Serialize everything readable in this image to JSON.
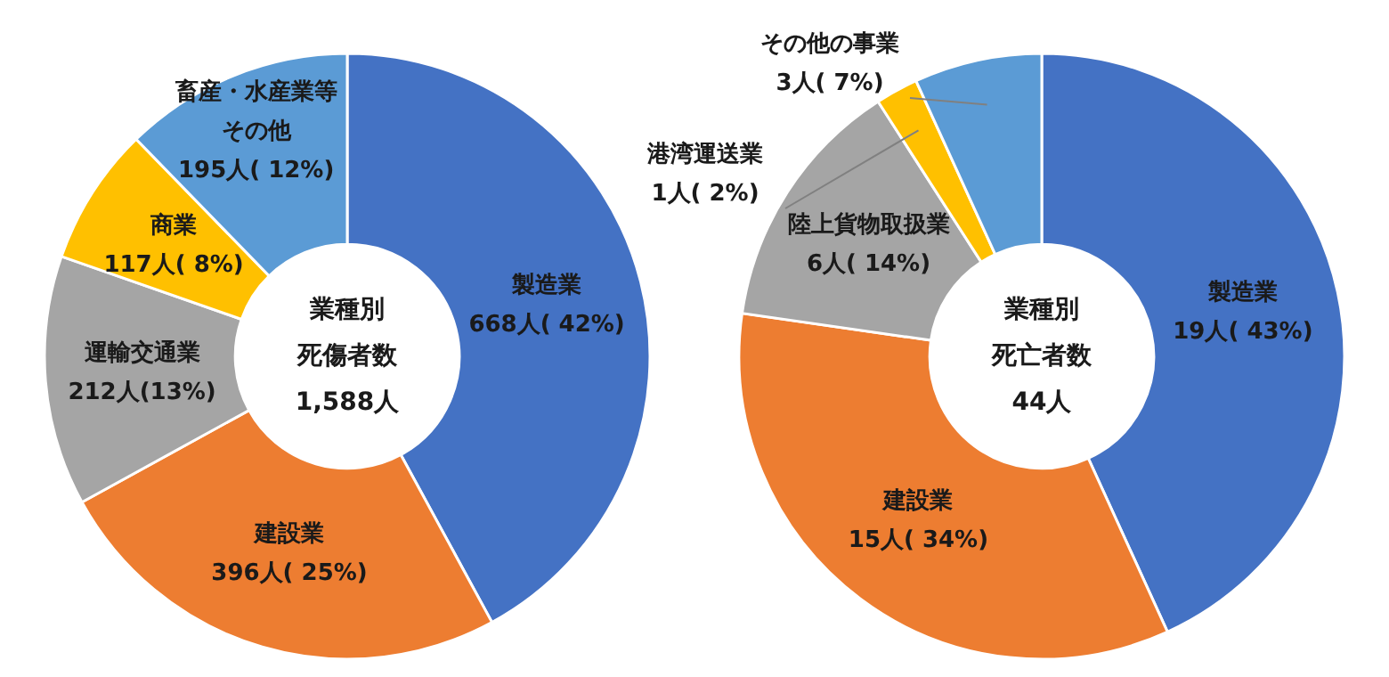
{
  "chart_data": [
    {
      "type": "donut",
      "categories": [
        "製造業",
        "建設業",
        "運輸交通業",
        "商業",
        "畜産・水産業等その他"
      ],
      "values": [
        668,
        396,
        212,
        117,
        195
      ],
      "colors": [
        "#4472c4",
        "#ed7d31",
        "#a5a5a5",
        "#ffc000",
        "#5b9bd5"
      ],
      "value_labels": [
        "668人( 42%)",
        "396人( 25%)",
        "212人(13%)",
        "117人( 8%)",
        "195人( 12%)"
      ],
      "annotations": [
        "業種別",
        "死傷者数",
        "1,588人"
      ]
    },
    {
      "type": "donut",
      "categories": [
        "製造業",
        "建設業",
        "陸上貨物取扱業",
        "港湾運送業",
        "その他の事業"
      ],
      "values": [
        19,
        15,
        6,
        1,
        3
      ],
      "colors": [
        "#4472c4",
        "#ed7d31",
        "#a5a5a5",
        "#ffc000",
        "#5b9bd5"
      ],
      "value_labels": [
        "19人( 43%)",
        "15人( 34%)",
        "6人( 14%)",
        "1人( 2%)",
        "3人( 7%)"
      ],
      "annotations": [
        "業種別",
        "死亡者数",
        "44人"
      ]
    }
  ]
}
